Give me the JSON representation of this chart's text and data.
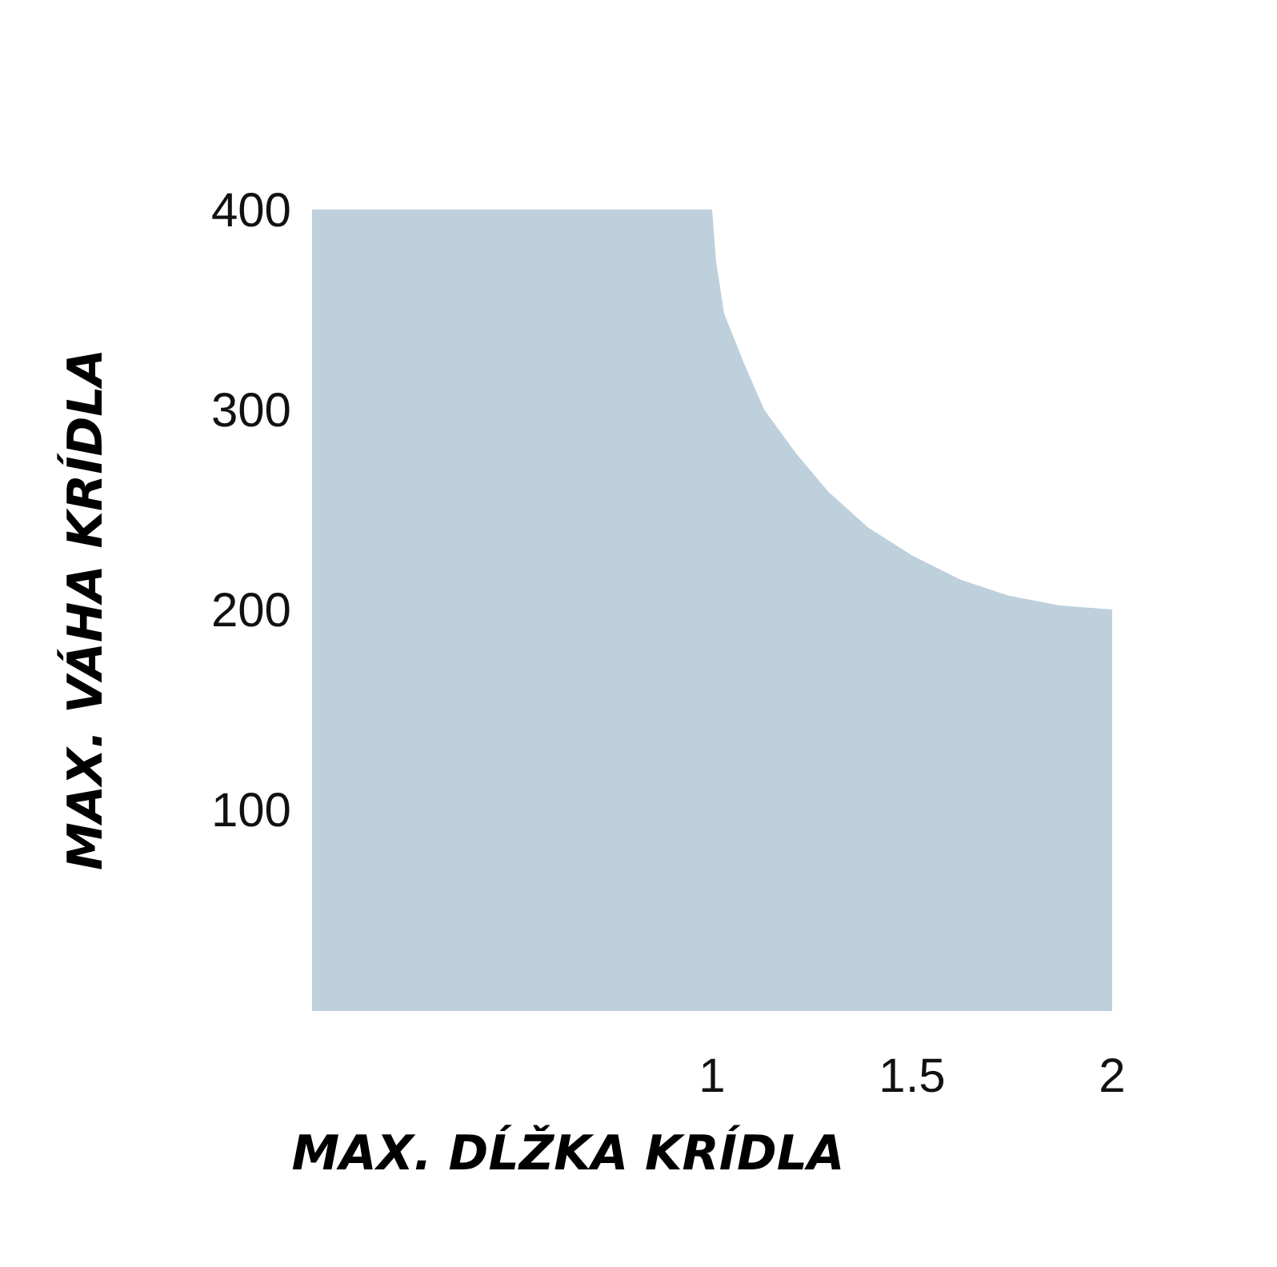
{
  "chart_data": {
    "type": "area",
    "xlabel": "MAX. DĹŽKA KRÍDLA",
    "ylabel": "MAX. VÁHA KRÍDLA",
    "x": [
      0,
      1,
      1.01,
      1.03,
      1.08,
      1.13,
      1.21,
      1.29,
      1.39,
      1.5,
      1.62,
      1.74,
      1.87,
      2
    ],
    "values": [
      400,
      400,
      374,
      348,
      323,
      300,
      278,
      259,
      241,
      227,
      215,
      207,
      202,
      200
    ],
    "color": "#bed0dc",
    "xlim": [
      0,
      2
    ],
    "xticks": [
      1,
      1.5,
      2
    ],
    "ylim": [
      0,
      400
    ],
    "yticks": [
      100,
      200,
      300,
      400
    ],
    "grid": false,
    "legend": false
  }
}
